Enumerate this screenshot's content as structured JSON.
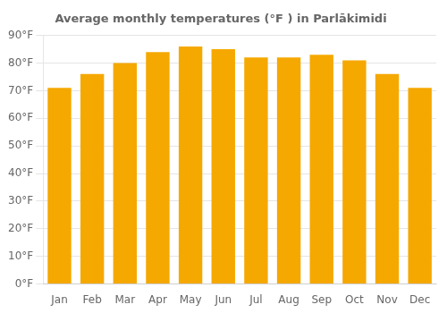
{
  "chart_data": {
    "type": "bar",
    "title": "Average monthly temperatures (°F ) in Parlākimidi",
    "categories": [
      "Jan",
      "Feb",
      "Mar",
      "Apr",
      "May",
      "Jun",
      "Jul",
      "Aug",
      "Sep",
      "Oct",
      "Nov",
      "Dec"
    ],
    "values": [
      71,
      76,
      80,
      84,
      86,
      85,
      82,
      82,
      83,
      81,
      76,
      71
    ],
    "color": "#F5A800",
    "ylim": [
      0,
      90
    ],
    "yticks": [
      {
        "value": 0,
        "label": "0°F"
      },
      {
        "value": 10,
        "label": "10°F"
      },
      {
        "value": 20,
        "label": "20°F"
      },
      {
        "value": 30,
        "label": "30°F"
      },
      {
        "value": 40,
        "label": "40°F"
      },
      {
        "value": 50,
        "label": "50°F"
      },
      {
        "value": 60,
        "label": "60°F"
      },
      {
        "value": 70,
        "label": "70°F"
      },
      {
        "value": 80,
        "label": "80°F"
      },
      {
        "value": 90,
        "label": "90°F"
      }
    ],
    "grid": true
  }
}
